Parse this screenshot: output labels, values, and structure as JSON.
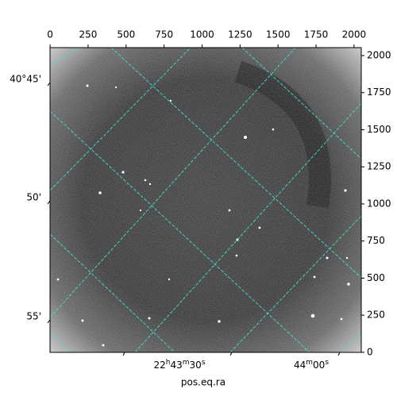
{
  "chart_data": {
    "type": "image",
    "xlabel": "pos.eq.ra",
    "xlim": [
      -0.5,
      2047.5
    ],
    "xticks": [
      0,
      250,
      500,
      750,
      1000,
      1250,
      1500,
      1750,
      2000
    ],
    "ylim": [
      -0.5,
      2053.5
    ],
    "yticks": [
      0,
      250,
      500,
      750,
      1000,
      1250,
      1500,
      1750,
      2000
    ],
    "dec_ticks": [
      "40°45'",
      "50'",
      "55'"
    ],
    "ra_ticks": [
      "22h43m30s",
      "44m00s"
    ],
    "grid_color": "#40e0d0"
  }
}
